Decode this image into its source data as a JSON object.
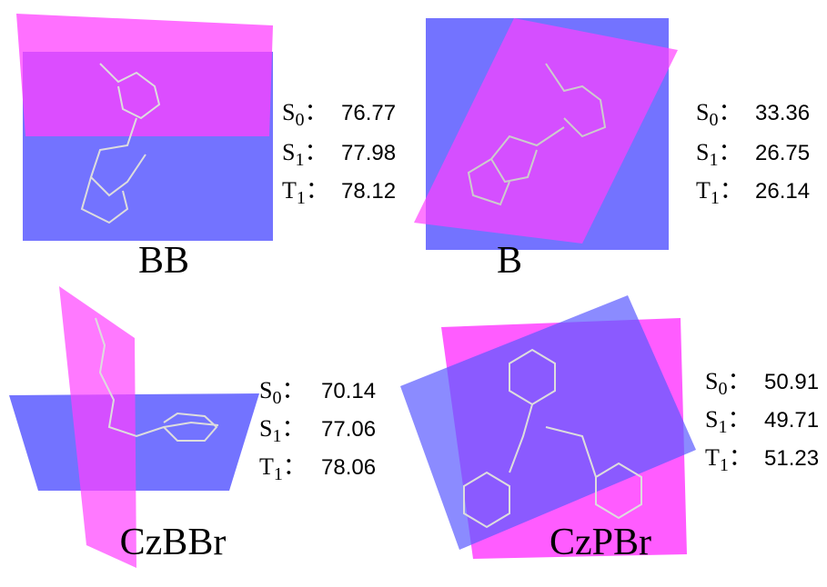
{
  "panels": [
    {
      "name": "BB",
      "states": [
        {
          "label": "S",
          "sub": "0",
          "sep": "：",
          "value": 76.77
        },
        {
          "label": "S",
          "sub": "1",
          "sep": "：",
          "value": 77.98
        },
        {
          "label": "T",
          "sub": "1",
          "sep": "：",
          "value": 78.12
        }
      ]
    },
    {
      "name": "B",
      "states": [
        {
          "label": "S",
          "sub": "0",
          "sep": "：",
          "value": 33.36
        },
        {
          "label": "S",
          "sub": "1",
          "sep": "：",
          "value": 26.75
        },
        {
          "label": "T",
          "sub": "1",
          "sep": "：",
          "value": 26.14
        }
      ]
    },
    {
      "name": "CzBBr",
      "states": [
        {
          "label": "S",
          "sub": "0",
          "sep": "：",
          "value": 70.14
        },
        {
          "label": "S",
          "sub": "1",
          "sep": "：",
          "value": 77.06
        },
        {
          "label": "T",
          "sub": "1",
          "sep": "：",
          "value": 78.06
        }
      ]
    },
    {
      "name": "CzPBr",
      "states": [
        {
          "label": "S",
          "sub": "0",
          "sep": "：",
          "value": 50.91
        },
        {
          "label": "S",
          "sub": "1",
          "sep": "：",
          "value": 49.71
        },
        {
          "label": "T",
          "sub": "1",
          "sep": "：",
          "value": 51.23
        }
      ]
    }
  ]
}
